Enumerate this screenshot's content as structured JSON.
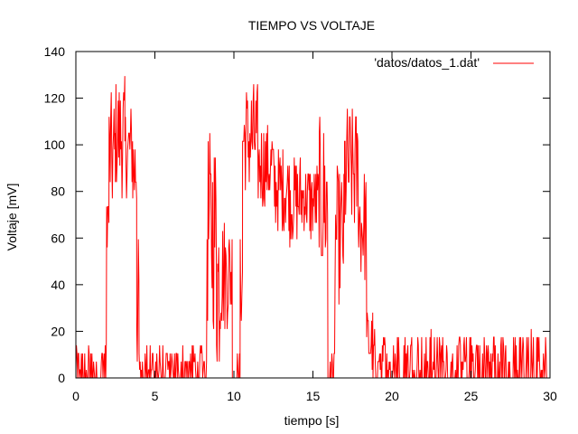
{
  "chart_data": {
    "type": "line",
    "title": "TIEMPO VS VOLTAJE",
    "xlabel": "tiempo [s]",
    "ylabel": "Voltaje [mV]",
    "xlim": [
      0,
      30
    ],
    "ylim": [
      0,
      140
    ],
    "xticks": [
      "0",
      "5",
      "10",
      "15",
      "20",
      "25",
      "30"
    ],
    "yticks": [
      "0",
      "20",
      "40",
      "60",
      "80",
      "100",
      "120",
      "140"
    ],
    "grid": false,
    "legend": "top-right",
    "series": [
      {
        "name": "'datos/datos_1.dat'",
        "color": "#ff0000",
        "segments": [
          {
            "x": [
              0,
              1.95
            ],
            "noise": [
              0,
              14
            ]
          },
          {
            "x": [
              1.95,
              2.1
            ],
            "noise": [
              55,
              85
            ]
          },
          {
            "x": [
              2.1,
              2.5
            ],
            "noise": [
              68,
              122
            ]
          },
          {
            "x": [
              2.5,
              3.1
            ],
            "noise": [
              78,
              131
            ]
          },
          {
            "x": [
              3.1,
              3.6
            ],
            "noise": [
              78,
              117
            ]
          },
          {
            "x": [
              3.6,
              3.85
            ],
            "noise": [
              68,
              110
            ]
          },
          {
            "x": [
              3.85,
              4.0
            ],
            "noise": [
              0,
              60
            ]
          },
          {
            "x": [
              4.0,
              8.3
            ],
            "noise": [
              0,
              14
            ]
          },
          {
            "x": [
              8.3,
              8.9
            ],
            "noise": [
              20,
              107
            ]
          },
          {
            "x": [
              8.9,
              9.15
            ],
            "noise": [
              0,
              83
            ]
          },
          {
            "x": [
              9.15,
              9.9
            ],
            "noise": [
              20,
              70
            ]
          },
          {
            "x": [
              9.9,
              10.4
            ],
            "noise": [
              0,
              12
            ]
          },
          {
            "x": [
              10.4,
              10.55
            ],
            "noise": [
              20,
              60
            ]
          },
          {
            "x": [
              10.55,
              11.5
            ],
            "noise": [
              78,
              127
            ]
          },
          {
            "x": [
              11.5,
              12.5
            ],
            "noise": [
              72,
              110
            ]
          },
          {
            "x": [
              12.5,
              13.5
            ],
            "noise": [
              62,
              100
            ]
          },
          {
            "x": [
              13.5,
              14.3
            ],
            "noise": [
              57,
              97
            ]
          },
          {
            "x": [
              14.3,
              14.8
            ],
            "noise": [
              62,
              93
            ]
          },
          {
            "x": [
              14.8,
              15.4
            ],
            "noise": [
              57,
              93
            ]
          },
          {
            "x": [
              15.4,
              15.95
            ],
            "noise": [
              40,
              112
            ]
          },
          {
            "x": [
              15.95,
              16.4
            ],
            "noise": [
              0,
              12
            ]
          },
          {
            "x": [
              16.4,
              17.0
            ],
            "noise": [
              30,
              90
            ]
          },
          {
            "x": [
              17.0,
              17.9
            ],
            "noise": [
              60,
              117
            ]
          },
          {
            "x": [
              17.9,
              18.4
            ],
            "noise": [
              40,
              93
            ]
          },
          {
            "x": [
              18.4,
              18.8
            ],
            "noise": [
              0,
              30
            ]
          },
          {
            "x": [
              18.8,
              30
            ],
            "noise": [
              0,
              20
            ]
          }
        ]
      }
    ]
  }
}
